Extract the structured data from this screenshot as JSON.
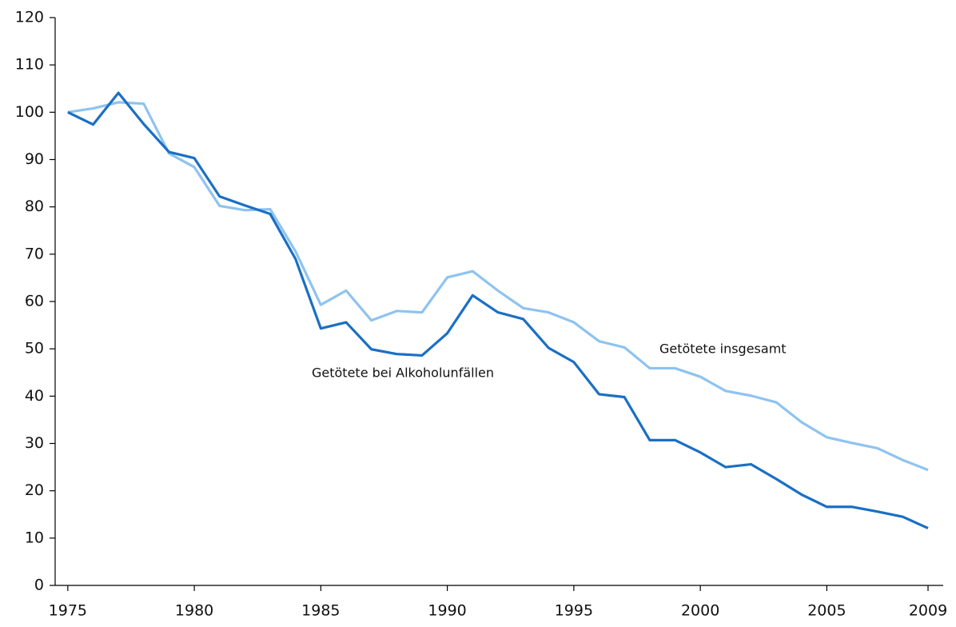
{
  "chart_data": {
    "type": "line",
    "x": [
      1975,
      1976,
      1977,
      1978,
      1979,
      1980,
      1981,
      1982,
      1983,
      1984,
      1985,
      1986,
      1987,
      1988,
      1989,
      1990,
      1991,
      1992,
      1993,
      1994,
      1995,
      1996,
      1997,
      1998,
      1999,
      2000,
      2001,
      2002,
      2003,
      2004,
      2005,
      2006,
      2007,
      2008,
      2009
    ],
    "series": [
      {
        "name": "Getötete insgesamt",
        "color": "#8ec3f0",
        "values": [
          100,
          100.8,
          102.1,
          101.8,
          91.3,
          88.4,
          80.2,
          79.3,
          79.5,
          70.6,
          59.3,
          62.3,
          56,
          58,
          57.7,
          65.1,
          66.4,
          62.3,
          58.6,
          57.7,
          55.6,
          51.6,
          50.3,
          45.9,
          45.9,
          44.1,
          41.1,
          40.1,
          38.7,
          34.5,
          31.3,
          30.1,
          29,
          26.5,
          24.4
        ]
      },
      {
        "name": "Getötete bei Alkoholunfällen",
        "color": "#1a6fc4",
        "values": [
          100,
          97.4,
          104.1,
          97.5,
          91.6,
          90.3,
          82.2,
          80.3,
          78.5,
          69,
          54.3,
          55.6,
          49.9,
          48.9,
          48.6,
          53.3,
          61.3,
          57.7,
          56.3,
          50.2,
          47.2,
          40.4,
          39.8,
          30.7,
          30.7,
          28.1,
          25,
          25.6,
          22.5,
          19.2,
          16.6,
          16.6,
          15.6,
          14.5,
          12.1
        ]
      }
    ],
    "xlim": [
      1974.5,
      2009.6
    ],
    "xticks": [
      1975,
      1980,
      1985,
      1990,
      1995,
      2000,
      2005,
      2009
    ],
    "ylim": [
      0,
      120
    ],
    "yticks": [
      0,
      10,
      20,
      30,
      40,
      50,
      60,
      70,
      80,
      90,
      100,
      110,
      120
    ]
  }
}
